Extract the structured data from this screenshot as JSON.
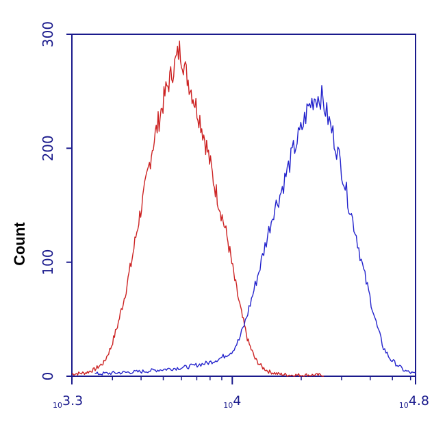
{
  "chart_data": {
    "type": "line",
    "title": "",
    "xlabel": "",
    "ylabel": "Count",
    "xscale": "log10",
    "xlim_log10": [
      3.3,
      4.8
    ],
    "ylim": [
      0,
      300
    ],
    "grid": false,
    "colors": {
      "axis": "#1a1a8c",
      "text": "#1a1a8c",
      "ylabel": "#000000"
    },
    "y_ticks": [
      {
        "value": 0,
        "label": "0"
      },
      {
        "value": 100,
        "label": "100"
      },
      {
        "value": 200,
        "label": "200"
      },
      {
        "value": 300,
        "label": "300"
      }
    ],
    "x_ticks": [
      {
        "exp": 3.3,
        "base": "10",
        "power": "3.3"
      },
      {
        "exp": 4.0,
        "base": "10",
        "power": "4"
      },
      {
        "exp": 4.8,
        "base": "10",
        "power": "4.8"
      }
    ],
    "series": [
      {
        "color": "#cc2222",
        "x_log10": [
          3.3,
          3.36,
          3.4,
          3.44,
          3.47,
          3.5,
          3.53,
          3.56,
          3.59,
          3.62,
          3.65,
          3.68,
          3.71,
          3.74,
          3.77,
          3.8,
          3.83,
          3.86,
          3.89,
          3.92,
          3.95,
          3.98,
          4.01,
          4.04,
          4.07,
          4.1,
          4.13,
          4.16,
          4.2,
          4.25,
          4.3,
          4.35,
          4.4
        ],
        "y": [
          2,
          3,
          6,
          12,
          25,
          45,
          70,
          100,
          135,
          165,
          200,
          225,
          250,
          268,
          287,
          265,
          245,
          225,
          200,
          170,
          145,
          120,
          85,
          55,
          30,
          15,
          8,
          4,
          2,
          1,
          1,
          1,
          1
        ]
      },
      {
        "color": "#2222cc",
        "x_log10": [
          3.4,
          3.5,
          3.6,
          3.7,
          3.8,
          3.9,
          3.95,
          4.0,
          4.03,
          4.06,
          4.09,
          4.12,
          4.15,
          4.18,
          4.21,
          4.24,
          4.27,
          4.3,
          4.33,
          4.36,
          4.39,
          4.42,
          4.45,
          4.48,
          4.51,
          4.54,
          4.57,
          4.6,
          4.63,
          4.66,
          4.69,
          4.72,
          4.75,
          4.78,
          4.8
        ],
        "y": [
          2,
          3,
          4,
          6,
          8,
          12,
          16,
          22,
          32,
          50,
          72,
          95,
          120,
          145,
          160,
          180,
          200,
          215,
          235,
          245,
          245,
          225,
          205,
          180,
          150,
          125,
          95,
          70,
          45,
          25,
          15,
          10,
          5,
          3,
          2
        ]
      }
    ]
  }
}
